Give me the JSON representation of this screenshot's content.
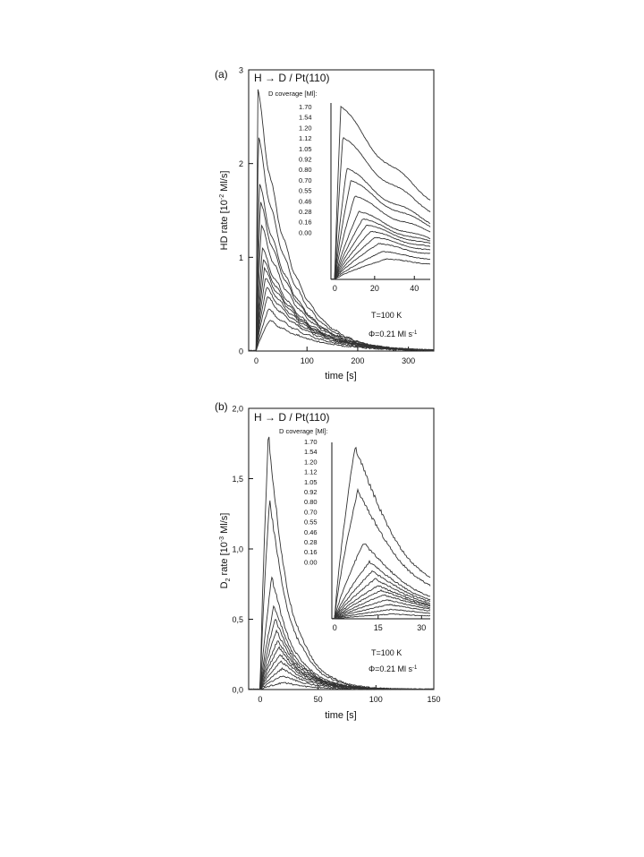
{
  "chart_data": [
    {
      "type": "line",
      "panel_label": "(a)",
      "title": "H → D / Pt(110)",
      "xlabel": "time [s]",
      "ylabel_parts": [
        "HD rate [10",
        "-2",
        " Ml/s]"
      ],
      "xlim": [
        -15,
        350
      ],
      "ylim": [
        0,
        3
      ],
      "xticks": [
        0,
        100,
        200,
        300
      ],
      "yticks": [
        0,
        1,
        2,
        3
      ],
      "xtick_labels": [
        "0",
        "100",
        "200",
        "300"
      ],
      "ytick_labels": [
        "0",
        "1",
        "2",
        "3"
      ],
      "legend_title": "D coverage [Ml]:",
      "coverages": [
        "1.70",
        "1.54",
        "1.20",
        "1.12",
        "1.05",
        "0.92",
        "0.80",
        "0.70",
        "0.55",
        "0.46",
        "0.28",
        "0.16",
        "0.00"
      ],
      "annotations": [
        "T=100 K",
        "Φ=0.21 Ml s"
      ],
      "annotation_sup": "-1",
      "series_peaks": [
        2.8,
        2.3,
        1.8,
        1.6,
        1.35,
        1.1,
        0.98,
        0.88,
        0.78,
        0.68,
        0.58,
        0.45,
        0.33
      ],
      "series_peak_times": [
        3,
        4,
        6,
        8,
        10,
        12,
        14,
        16,
        18,
        20,
        22,
        24,
        26
      ],
      "decay_time": 60,
      "inset": {
        "xlim": [
          -2,
          48
        ],
        "xticks": [
          0,
          20,
          40
        ],
        "xtick_labels": [
          "0",
          "20",
          "40"
        ]
      }
    },
    {
      "type": "line",
      "panel_label": "(b)",
      "title": "H → D / Pt(110)",
      "xlabel": "time [s]",
      "ylabel_parts": [
        "D",
        "2",
        " rate [10",
        "-3",
        " Ml/s]"
      ],
      "xlim": [
        -10,
        150
      ],
      "ylim": [
        0,
        2.0
      ],
      "xticks": [
        0,
        50,
        100,
        150
      ],
      "yticks": [
        0,
        0.5,
        1.0,
        1.5,
        2.0
      ],
      "xtick_labels": [
        "0",
        "50",
        "100",
        "150"
      ],
      "ytick_labels": [
        "0,0",
        "0,5",
        "1,0",
        "1,5",
        "2,0"
      ],
      "legend_title": "D coverage [Ml]:",
      "coverages": [
        "1.70",
        "1.54",
        "1.20",
        "1.12",
        "1.05",
        "0.92",
        "0.80",
        "0.70",
        "0.55",
        "0.46",
        "0.28",
        "0.16",
        "0.00"
      ],
      "annotations": [
        "T=100 K",
        "Φ=0.21 Ml s"
      ],
      "annotation_sup": "-1",
      "series_peaks": [
        1.82,
        1.35,
        0.8,
        0.6,
        0.5,
        0.42,
        0.35,
        0.3,
        0.25,
        0.2,
        0.15,
        0.1,
        0.05
      ],
      "series_peak_times": [
        7,
        8,
        10,
        12,
        13,
        14,
        15,
        16,
        17,
        18,
        19,
        20,
        20
      ],
      "decay_time": 18,
      "inset": {
        "xlim": [
          -1,
          33
        ],
        "xticks": [
          0,
          15,
          30
        ],
        "xtick_labels": [
          "0",
          "15",
          "30"
        ]
      }
    }
  ]
}
